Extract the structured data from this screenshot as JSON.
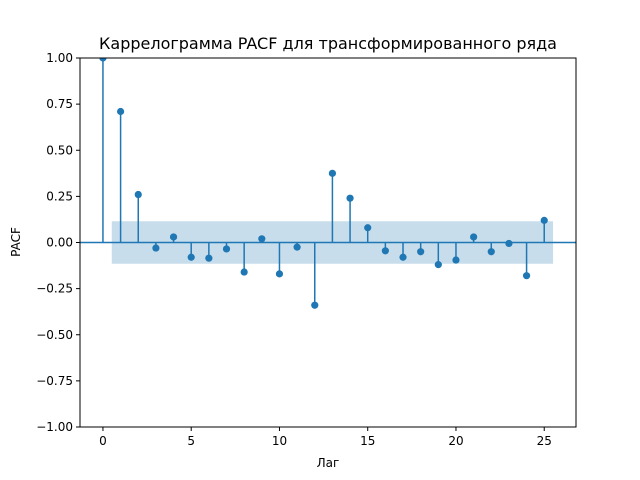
{
  "chart_data": {
    "type": "scatter",
    "subtype": "stem",
    "title": "Каррелограмма PACF для трансформированного ряда",
    "xlabel": "Лаг",
    "ylabel": "PACF",
    "xlim": [
      -1.3,
      26.8
    ],
    "ylim": [
      -1.0,
      1.0
    ],
    "x_ticks": [
      0,
      5,
      10,
      15,
      20,
      25
    ],
    "y_ticks": [
      -1.0,
      -0.75,
      -0.5,
      -0.25,
      0.0,
      0.25,
      0.5,
      0.75,
      1.0
    ],
    "x_tick_labels": [
      "0",
      "5",
      "10",
      "15",
      "20",
      "25"
    ],
    "y_tick_labels": [
      "−1.00",
      "−0.75",
      "−0.50",
      "−0.25",
      "0.00",
      "0.25",
      "0.50",
      "0.75",
      "1.00"
    ],
    "series": [
      {
        "x": [
          0,
          1,
          2,
          3,
          4,
          5,
          6,
          7,
          8,
          9,
          10,
          11,
          12,
          13,
          14,
          15,
          16,
          17,
          18,
          19,
          20,
          21,
          22,
          23,
          24,
          25
        ],
        "values": [
          1.0,
          0.71,
          0.26,
          -0.03,
          0.03,
          -0.08,
          -0.085,
          -0.035,
          -0.16,
          0.02,
          -0.17,
          -0.025,
          -0.34,
          0.375,
          0.24,
          0.08,
          -0.045,
          -0.08,
          -0.05,
          -0.12,
          -0.095,
          0.03,
          -0.05,
          -0.005,
          -0.18,
          0.12
        ]
      }
    ],
    "confidence_band": {
      "x_range": [
        0.5,
        25.5
      ],
      "upper": 0.115,
      "lower": -0.115
    },
    "grid": false,
    "colors": {
      "stem": "#1f77b4",
      "band": "#1f77b4",
      "band_alpha": 0.25
    }
  }
}
